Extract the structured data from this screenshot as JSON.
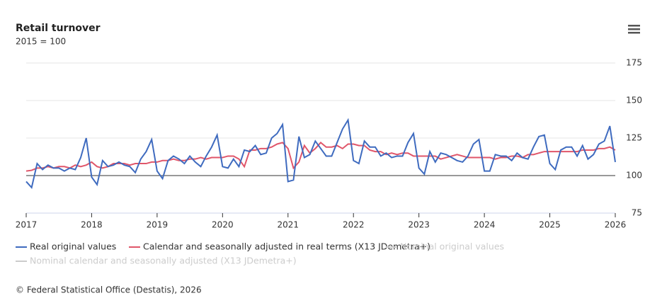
{
  "chart_data": {
    "type": "line",
    "title": "Retail turnover",
    "subtitle": "2015 = 100",
    "credits": "© Federal Statistical Office (Destatis), 2026",
    "x": [
      2017,
      2017.083,
      2017.167,
      2017.25,
      2017.333,
      2017.417,
      2017.5,
      2017.583,
      2017.667,
      2017.75,
      2017.833,
      2017.917,
      2018,
      2018.083,
      2018.167,
      2018.25,
      2018.333,
      2018.417,
      2018.5,
      2018.583,
      2018.667,
      2018.75,
      2018.833,
      2018.917,
      2019,
      2019.083,
      2019.167,
      2019.25,
      2019.333,
      2019.417,
      2019.5,
      2019.583,
      2019.667,
      2019.75,
      2019.833,
      2019.917,
      2020,
      2020.083,
      2020.167,
      2020.25,
      2020.333,
      2020.417,
      2020.5,
      2020.583,
      2020.667,
      2020.75,
      2020.833,
      2020.917,
      2021,
      2021.083,
      2021.167,
      2021.25,
      2021.333,
      2021.417,
      2021.5,
      2021.583,
      2021.667,
      2021.75,
      2021.833,
      2021.917,
      2022,
      2022.083,
      2022.167,
      2022.25,
      2022.333,
      2022.417,
      2022.5,
      2022.583,
      2022.667,
      2022.75,
      2022.833,
      2022.917,
      2023,
      2023.083,
      2023.167,
      2023.25,
      2023.333,
      2023.417,
      2023.5,
      2023.583,
      2023.667,
      2023.75,
      2023.833,
      2023.917,
      2024,
      2024.083,
      2024.167,
      2024.25,
      2024.333,
      2024.417,
      2024.5,
      2024.583,
      2024.667,
      2024.75,
      2024.833,
      2024.917,
      2025,
      2025.083,
      2025.167,
      2025.25,
      2025.333,
      2025.417,
      2025.5,
      2025.583,
      2025.667,
      2025.75,
      2025.833,
      2025.917,
      2026
    ],
    "series": [
      {
        "name": "Real original values",
        "color": "#3f6bbf",
        "values": [
          96,
          92,
          108,
          104,
          107,
          105,
          105,
          103,
          105,
          104,
          112,
          125,
          99,
          94,
          110,
          106,
          107,
          109,
          107,
          106,
          102,
          111,
          116,
          124,
          103,
          98,
          110,
          113,
          111,
          108,
          113,
          109,
          106,
          113,
          119,
          127,
          106,
          105,
          111,
          106,
          117,
          116,
          120,
          114,
          115,
          125,
          128,
          134,
          96,
          97,
          126,
          112,
          114,
          123,
          118,
          113,
          113,
          122,
          131,
          137,
          110,
          108,
          123,
          119,
          119,
          113,
          115,
          112,
          113,
          113,
          122,
          128,
          105,
          101,
          116,
          109,
          115,
          114,
          112,
          110,
          109,
          113,
          121,
          124,
          103,
          103,
          114,
          113,
          113,
          110,
          115,
          112,
          111,
          119,
          126,
          127,
          108,
          104,
          117,
          119,
          119,
          113,
          120,
          111,
          114,
          121,
          123,
          133,
          109
        ]
      },
      {
        "name": "Calendar and seasonally adjusted in real terms (X13 JDemetra+)",
        "color": "#e0566a",
        "values": [
          103,
          103.5,
          105,
          105,
          106,
          105,
          106,
          106,
          105,
          107,
          106,
          107,
          109,
          106,
          105,
          106,
          108,
          108,
          108,
          107,
          108,
          108,
          108,
          109,
          109,
          110,
          110,
          111,
          110,
          110,
          111,
          111,
          112,
          111,
          112,
          112,
          112,
          113,
          113,
          111,
          106,
          117,
          117,
          118,
          118,
          119,
          121,
          122,
          118,
          105,
          109,
          120,
          115,
          118,
          122,
          119,
          119,
          120,
          118,
          121,
          121,
          120,
          120,
          117,
          116,
          116,
          114,
          115,
          114,
          115,
          115,
          113,
          113,
          113,
          113,
          113,
          111,
          112,
          113,
          114,
          113,
          112,
          112,
          112,
          112,
          112,
          111,
          112,
          112,
          113,
          113,
          112,
          114,
          114,
          115,
          116,
          116,
          116,
          116,
          116,
          116,
          116,
          117,
          117,
          117,
          118,
          118,
          119,
          117
        ]
      }
    ],
    "inactive_legend": [
      "Nominal original values",
      "Nominal calendar and seasonally adjusted (X13 JDemetra+)"
    ],
    "xlim": [
      2017,
      2026
    ],
    "xticks": [
      2017,
      2018,
      2019,
      2020,
      2021,
      2022,
      2023,
      2024,
      2025,
      2026
    ],
    "ylim": [
      75,
      175
    ],
    "yticks": [
      75,
      100,
      125,
      150,
      175
    ],
    "reference_line": 100,
    "grid": true
  }
}
